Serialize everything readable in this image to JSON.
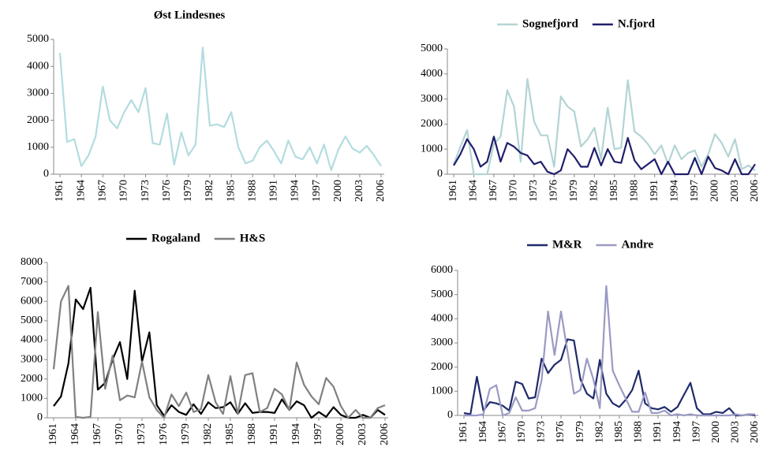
{
  "chart_data": [
    {
      "type": "line",
      "title": "Øst Lindesnes",
      "x": [
        1961,
        1962,
        1963,
        1964,
        1965,
        1966,
        1967,
        1968,
        1969,
        1970,
        1971,
        1972,
        1973,
        1974,
        1975,
        1976,
        1977,
        1978,
        1979,
        1980,
        1981,
        1982,
        1983,
        1984,
        1985,
        1986,
        1987,
        1988,
        1989,
        1990,
        1991,
        1992,
        1993,
        1994,
        1995,
        1996,
        1997,
        1998,
        1999,
        2000,
        2001,
        2002,
        2003,
        2004,
        2005,
        2006
      ],
      "series": [
        {
          "name": null,
          "color": "#b3dcdf",
          "values": [
            4500,
            1200,
            1300,
            300,
            700,
            1400,
            3250,
            2000,
            1700,
            2300,
            2750,
            2300,
            3200,
            1150,
            1100,
            2250,
            350,
            1550,
            700,
            1100,
            4700,
            1800,
            1850,
            1750,
            2300,
            1000,
            400,
            500,
            1000,
            1250,
            850,
            400,
            1250,
            650,
            550,
            1000,
            400,
            1100,
            150,
            900,
            1400,
            950,
            800,
            1050,
            700,
            300
          ]
        }
      ],
      "xlim": [
        1961,
        2006
      ],
      "xticks": [
        1961,
        1964,
        1967,
        1970,
        1973,
        1976,
        1979,
        1982,
        1985,
        1988,
        1991,
        1994,
        1997,
        2000,
        2003,
        2006
      ],
      "ylim": [
        0,
        5000
      ],
      "yticks": [
        0,
        1000,
        2000,
        3000,
        4000,
        5000
      ],
      "legend": "none"
    },
    {
      "type": "line",
      "x": [
        1961,
        1962,
        1963,
        1964,
        1965,
        1966,
        1967,
        1968,
        1969,
        1970,
        1971,
        1972,
        1973,
        1974,
        1975,
        1976,
        1977,
        1978,
        1979,
        1980,
        1981,
        1982,
        1983,
        1984,
        1985,
        1986,
        1987,
        1988,
        1989,
        1990,
        1991,
        1992,
        1993,
        1994,
        1995,
        1996,
        1997,
        1998,
        1999,
        2000,
        2001,
        2002,
        2003,
        2004,
        2005,
        2006
      ],
      "series": [
        {
          "name": "Sognefjord",
          "color": "#b3d4d4",
          "values": [
            400,
            1100,
            1750,
            0,
            0,
            0,
            1200,
            1500,
            3350,
            2700,
            500,
            3800,
            2100,
            1550,
            1550,
            300,
            3100,
            2700,
            2500,
            1100,
            1400,
            1850,
            600,
            2650,
            1000,
            1050,
            3750,
            1700,
            1500,
            1200,
            800,
            1150,
            400,
            1150,
            600,
            850,
            950,
            300,
            800,
            1600,
            1250,
            700,
            1400,
            200,
            350,
            150
          ]
        },
        {
          "name": "N.fjord",
          "color": "#1f1f6b",
          "values": [
            350,
            800,
            1400,
            1000,
            300,
            500,
            1500,
            500,
            1250,
            1100,
            850,
            750,
            400,
            500,
            100,
            0,
            150,
            1000,
            700,
            300,
            300,
            1050,
            350,
            1000,
            500,
            450,
            1450,
            550,
            200,
            400,
            600,
            0,
            500,
            0,
            0,
            0,
            650,
            0,
            700,
            250,
            150,
            0,
            600,
            0,
            0,
            400
          ]
        }
      ],
      "xlim": [
        1961,
        2006
      ],
      "xticks": [
        1961,
        1964,
        1967,
        1970,
        1973,
        1976,
        1979,
        1982,
        1985,
        1988,
        1991,
        1994,
        1997,
        2000,
        2003,
        2006
      ],
      "ylim": [
        0,
        5000
      ],
      "yticks": [
        0,
        1000,
        2000,
        3000,
        4000,
        5000
      ],
      "legend": "top"
    },
    {
      "type": "line",
      "x": [
        1961,
        1962,
        1963,
        1964,
        1965,
        1966,
        1967,
        1968,
        1969,
        1970,
        1971,
        1972,
        1973,
        1974,
        1975,
        1976,
        1977,
        1978,
        1979,
        1980,
        1981,
        1982,
        1983,
        1984,
        1985,
        1986,
        1987,
        1988,
        1989,
        1990,
        1991,
        1992,
        1993,
        1994,
        1995,
        1996,
        1997,
        1998,
        1999,
        2000,
        2001,
        2002,
        2003,
        2004,
        2005,
        2006
      ],
      "series": [
        {
          "name": "Rogaland",
          "color": "#000000",
          "values": [
            600,
            1100,
            2800,
            6100,
            5600,
            6700,
            1450,
            1800,
            3000,
            3900,
            2000,
            6550,
            2900,
            4400,
            650,
            100,
            650,
            300,
            150,
            700,
            200,
            800,
            500,
            550,
            800,
            200,
            750,
            250,
            300,
            300,
            250,
            950,
            400,
            850,
            650,
            0,
            300,
            50,
            550,
            150,
            0,
            0,
            150,
            0,
            400,
            150
          ]
        },
        {
          "name": "H&S",
          "color": "#808080",
          "values": [
            2500,
            6000,
            6800,
            50,
            0,
            50,
            5450,
            1500,
            3200,
            900,
            1150,
            1050,
            2900,
            1050,
            400,
            0,
            1200,
            600,
            1300,
            300,
            450,
            2200,
            800,
            200,
            2150,
            200,
            2200,
            2300,
            300,
            500,
            1500,
            1200,
            400,
            2850,
            1700,
            1100,
            700,
            2050,
            1600,
            600,
            0,
            400,
            0,
            0,
            500,
            650
          ]
        }
      ],
      "xlim": [
        1961,
        2006
      ],
      "xticks": [
        1961,
        1964,
        1967,
        1970,
        1973,
        1976,
        1979,
        1982,
        1985,
        1988,
        1991,
        1994,
        1997,
        2000,
        2003,
        2006
      ],
      "ylim": [
        0,
        8000
      ],
      "yticks": [
        0,
        1000,
        2000,
        3000,
        4000,
        5000,
        6000,
        7000,
        8000
      ],
      "legend": "top"
    },
    {
      "type": "line",
      "x": [
        1961,
        1962,
        1963,
        1964,
        1965,
        1966,
        1967,
        1968,
        1969,
        1970,
        1971,
        1972,
        1973,
        1974,
        1975,
        1976,
        1977,
        1978,
        1979,
        1980,
        1981,
        1982,
        1983,
        1984,
        1985,
        1986,
        1987,
        1988,
        1989,
        1990,
        1991,
        1992,
        1993,
        1994,
        1995,
        1996,
        1997,
        1998,
        1999,
        2000,
        2001,
        2002,
        2003,
        2004,
        2005,
        2006
      ],
      "series": [
        {
          "name": "M&R",
          "color": "#1f2a6b",
          "values": [
            100,
            50,
            1600,
            200,
            550,
            500,
            400,
            200,
            1400,
            1300,
            700,
            750,
            2350,
            1750,
            2100,
            2300,
            3150,
            3100,
            1500,
            900,
            700,
            2300,
            900,
            500,
            350,
            650,
            1050,
            1850,
            500,
            300,
            250,
            350,
            150,
            350,
            850,
            1350,
            300,
            50,
            50,
            150,
            100,
            300,
            0,
            0,
            50,
            0
          ]
        },
        {
          "name": "Andre",
          "color": "#9a9ac4",
          "values": [
            0,
            0,
            0,
            50,
            1100,
            1250,
            0,
            100,
            750,
            200,
            200,
            300,
            1450,
            4300,
            2500,
            4300,
            2650,
            900,
            1050,
            2350,
            1500,
            300,
            5350,
            1850,
            1250,
            700,
            150,
            150,
            950,
            100,
            100,
            200,
            0,
            50,
            0,
            50,
            0,
            0,
            0,
            0,
            0,
            0,
            50,
            0,
            50,
            50
          ]
        }
      ],
      "xlim": [
        1961,
        2006
      ],
      "xticks": [
        1961,
        1964,
        1967,
        1970,
        1973,
        1976,
        1979,
        1982,
        1985,
        1988,
        1991,
        1994,
        1997,
        2000,
        2003,
        2006
      ],
      "ylim": [
        0,
        6000
      ],
      "yticks": [
        0,
        1000,
        2000,
        3000,
        4000,
        5000,
        6000
      ],
      "legend": "top"
    }
  ]
}
